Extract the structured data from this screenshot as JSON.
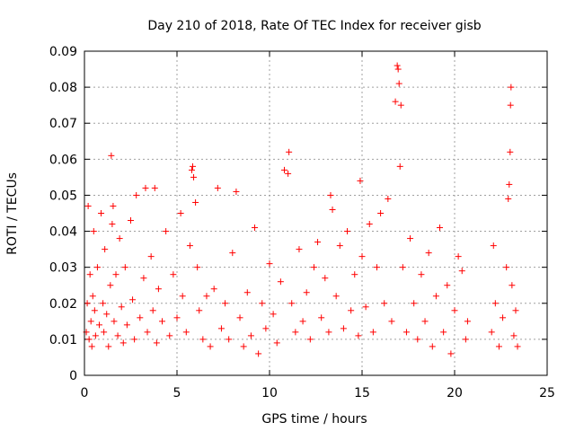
{
  "chart_data": {
    "type": "scatter",
    "title": "Day 210 of 2018, Rate Of TEC Index for receiver gisb",
    "xlabel": "GPS time / hours",
    "ylabel": "ROTI / TECUs",
    "xlim": [
      0,
      25
    ],
    "ylim": [
      0,
      0.09
    ],
    "xticks": [
      0,
      5,
      10,
      15,
      20,
      25
    ],
    "yticks": [
      0,
      0.01,
      0.02,
      0.03,
      0.04,
      0.05,
      0.06,
      0.07,
      0.08,
      0.09
    ],
    "ytick_labels": [
      "0",
      "0.01",
      "0.02",
      "0.03",
      "0.04",
      "0.05",
      "0.06",
      "0.07",
      "0.08",
      "0.09"
    ],
    "grid": true,
    "marker": "+",
    "color": "#ff0000",
    "series": [
      {
        "points": [
          [
            0.1,
            0.012
          ],
          [
            0.15,
            0.02
          ],
          [
            0.2,
            0.047
          ],
          [
            0.25,
            0.01
          ],
          [
            0.3,
            0.028
          ],
          [
            0.35,
            0.015
          ],
          [
            0.4,
            0.008
          ],
          [
            0.45,
            0.022
          ],
          [
            0.5,
            0.04
          ],
          [
            0.55,
            0.018
          ],
          [
            0.6,
            0.011
          ],
          [
            0.7,
            0.03
          ],
          [
            0.8,
            0.014
          ],
          [
            0.9,
            0.045
          ],
          [
            1.0,
            0.02
          ],
          [
            1.05,
            0.012
          ],
          [
            1.1,
            0.035
          ],
          [
            1.2,
            0.017
          ],
          [
            1.3,
            0.008
          ],
          [
            1.4,
            0.025
          ],
          [
            1.45,
            0.061
          ],
          [
            1.5,
            0.042
          ],
          [
            1.55,
            0.047
          ],
          [
            1.6,
            0.015
          ],
          [
            1.7,
            0.028
          ],
          [
            1.8,
            0.011
          ],
          [
            1.9,
            0.038
          ],
          [
            2.0,
            0.019
          ],
          [
            2.1,
            0.009
          ],
          [
            2.2,
            0.03
          ],
          [
            2.3,
            0.014
          ],
          [
            2.5,
            0.043
          ],
          [
            2.6,
            0.021
          ],
          [
            2.7,
            0.01
          ],
          [
            2.8,
            0.05
          ],
          [
            3.0,
            0.016
          ],
          [
            3.2,
            0.027
          ],
          [
            3.3,
            0.052
          ],
          [
            3.4,
            0.012
          ],
          [
            3.6,
            0.033
          ],
          [
            3.7,
            0.018
          ],
          [
            3.8,
            0.052
          ],
          [
            3.9,
            0.009
          ],
          [
            4.0,
            0.024
          ],
          [
            4.2,
            0.015
          ],
          [
            4.4,
            0.04
          ],
          [
            4.6,
            0.011
          ],
          [
            4.8,
            0.028
          ],
          [
            5.0,
            0.016
          ],
          [
            5.2,
            0.045
          ],
          [
            5.3,
            0.022
          ],
          [
            5.5,
            0.012
          ],
          [
            5.7,
            0.036
          ],
          [
            5.8,
            0.057
          ],
          [
            5.85,
            0.058
          ],
          [
            5.9,
            0.055
          ],
          [
            6.0,
            0.048
          ],
          [
            6.1,
            0.03
          ],
          [
            6.2,
            0.018
          ],
          [
            6.4,
            0.01
          ],
          [
            6.6,
            0.022
          ],
          [
            6.8,
            0.008
          ],
          [
            7.0,
            0.024
          ],
          [
            7.2,
            0.052
          ],
          [
            7.4,
            0.013
          ],
          [
            7.6,
            0.02
          ],
          [
            7.8,
            0.01
          ],
          [
            8.0,
            0.034
          ],
          [
            8.2,
            0.051
          ],
          [
            8.4,
            0.016
          ],
          [
            8.6,
            0.008
          ],
          [
            8.8,
            0.023
          ],
          [
            9.0,
            0.011
          ],
          [
            9.2,
            0.041
          ],
          [
            9.4,
            0.006
          ],
          [
            9.6,
            0.02
          ],
          [
            9.8,
            0.013
          ],
          [
            10.0,
            0.031
          ],
          [
            10.2,
            0.017
          ],
          [
            10.4,
            0.009
          ],
          [
            10.6,
            0.026
          ],
          [
            10.8,
            0.057
          ],
          [
            11.0,
            0.056
          ],
          [
            11.05,
            0.062
          ],
          [
            11.2,
            0.02
          ],
          [
            11.4,
            0.012
          ],
          [
            11.6,
            0.035
          ],
          [
            11.8,
            0.015
          ],
          [
            12.0,
            0.023
          ],
          [
            12.2,
            0.01
          ],
          [
            12.4,
            0.03
          ],
          [
            12.6,
            0.037
          ],
          [
            12.8,
            0.016
          ],
          [
            13.0,
            0.027
          ],
          [
            13.2,
            0.012
          ],
          [
            13.3,
            0.05
          ],
          [
            13.4,
            0.046
          ],
          [
            13.6,
            0.022
          ],
          [
            13.8,
            0.036
          ],
          [
            14.0,
            0.013
          ],
          [
            14.2,
            0.04
          ],
          [
            14.4,
            0.018
          ],
          [
            14.6,
            0.028
          ],
          [
            14.8,
            0.011
          ],
          [
            14.9,
            0.054
          ],
          [
            15.0,
            0.033
          ],
          [
            15.2,
            0.019
          ],
          [
            15.4,
            0.042
          ],
          [
            15.6,
            0.012
          ],
          [
            15.8,
            0.03
          ],
          [
            16.0,
            0.045
          ],
          [
            16.2,
            0.02
          ],
          [
            16.4,
            0.049
          ],
          [
            16.6,
            0.015
          ],
          [
            16.8,
            0.076
          ],
          [
            16.9,
            0.086
          ],
          [
            16.95,
            0.085
          ],
          [
            17.0,
            0.081
          ],
          [
            17.05,
            0.058
          ],
          [
            17.1,
            0.075
          ],
          [
            17.2,
            0.03
          ],
          [
            17.4,
            0.012
          ],
          [
            17.6,
            0.038
          ],
          [
            17.8,
            0.02
          ],
          [
            18.0,
            0.01
          ],
          [
            18.2,
            0.028
          ],
          [
            18.4,
            0.015
          ],
          [
            18.6,
            0.034
          ],
          [
            18.8,
            0.008
          ],
          [
            19.0,
            0.022
          ],
          [
            19.2,
            0.041
          ],
          [
            19.4,
            0.012
          ],
          [
            19.6,
            0.025
          ],
          [
            19.8,
            0.006
          ],
          [
            20.0,
            0.018
          ],
          [
            20.2,
            0.033
          ],
          [
            20.4,
            0.029
          ],
          [
            20.6,
            0.01
          ],
          [
            20.7,
            0.015
          ],
          [
            22.0,
            0.012
          ],
          [
            22.1,
            0.036
          ],
          [
            22.2,
            0.02
          ],
          [
            22.4,
            0.008
          ],
          [
            22.6,
            0.016
          ],
          [
            22.8,
            0.03
          ],
          [
            22.9,
            0.049
          ],
          [
            22.95,
            0.053
          ],
          [
            23.0,
            0.062
          ],
          [
            23.02,
            0.075
          ],
          [
            23.05,
            0.08
          ],
          [
            23.1,
            0.025
          ],
          [
            23.2,
            0.011
          ],
          [
            23.3,
            0.018
          ],
          [
            23.4,
            0.008
          ]
        ]
      }
    ]
  }
}
